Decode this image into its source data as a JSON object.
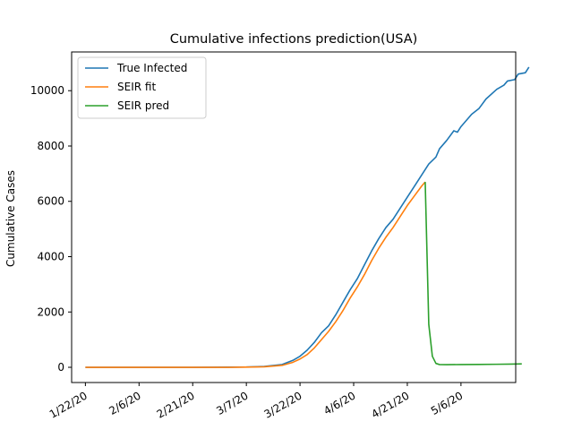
{
  "chart_data": {
    "type": "line",
    "title": "Cumulative infections prediction(USA)",
    "xlabel": "",
    "ylabel": "Cumulative Cases",
    "x_ticks": [
      "1/22/20",
      "2/6/20",
      "2/21/20",
      "3/7/20",
      "3/22/20",
      "4/6/20",
      "4/21/20",
      "5/6/20"
    ],
    "y_ticks": [
      0,
      2000,
      4000,
      6000,
      8000,
      10000
    ],
    "ylim": [
      -550,
      11400
    ],
    "legend_position": "top-left",
    "grid": false,
    "series": [
      {
        "name": "True Infected",
        "color": "#1f77b4",
        "points": [
          [
            "1/22/20",
            0
          ],
          [
            "2/1/20",
            0
          ],
          [
            "2/11/20",
            0
          ],
          [
            "2/21/20",
            0
          ],
          [
            "3/2/20",
            5
          ],
          [
            "3/7/20",
            10
          ],
          [
            "3/12/20",
            30
          ],
          [
            "3/17/20",
            100
          ],
          [
            "3/20/20",
            250
          ],
          [
            "3/22/20",
            400
          ],
          [
            "3/24/20",
            620
          ],
          [
            "3/26/20",
            900
          ],
          [
            "3/28/20",
            1250
          ],
          [
            "3/30/20",
            1500
          ],
          [
            "4/1/20",
            1900
          ],
          [
            "4/3/20",
            2350
          ],
          [
            "4/5/20",
            2800
          ],
          [
            "4/7/20",
            3200
          ],
          [
            "4/9/20",
            3700
          ],
          [
            "4/11/20",
            4200
          ],
          [
            "4/13/20",
            4650
          ],
          [
            "4/15/20",
            5050
          ],
          [
            "4/17/20",
            5350
          ],
          [
            "4/19/20",
            5750
          ],
          [
            "4/21/20",
            6150
          ],
          [
            "4/23/20",
            6550
          ],
          [
            "4/25/20",
            6950
          ],
          [
            "4/27/20",
            7350
          ],
          [
            "4/29/20",
            7600
          ],
          [
            "4/30/20",
            7900
          ],
          [
            "5/2/20",
            8200
          ],
          [
            "5/4/20",
            8550
          ],
          [
            "5/5/20",
            8500
          ],
          [
            "5/6/20",
            8700
          ],
          [
            "5/8/20",
            9000
          ],
          [
            "5/9/20",
            9150
          ],
          [
            "5/11/20",
            9350
          ],
          [
            "5/13/20",
            9700
          ],
          [
            "5/16/20",
            10050
          ],
          [
            "5/18/20",
            10200
          ],
          [
            "5/19/20",
            10350
          ],
          [
            "5/21/20",
            10400
          ],
          [
            "5/22/20",
            10600
          ],
          [
            "5/24/20",
            10650
          ],
          [
            "5/25/20",
            10850
          ]
        ]
      },
      {
        "name": "SEIR fit",
        "color": "#ff7f0e",
        "points": [
          [
            "1/22/20",
            0
          ],
          [
            "2/1/20",
            0
          ],
          [
            "2/11/20",
            0
          ],
          [
            "2/21/20",
            0
          ],
          [
            "3/2/20",
            0
          ],
          [
            "3/7/20",
            5
          ],
          [
            "3/12/20",
            20
          ],
          [
            "3/17/20",
            70
          ],
          [
            "3/20/20",
            180
          ],
          [
            "3/22/20",
            300
          ],
          [
            "3/24/20",
            460
          ],
          [
            "3/26/20",
            700
          ],
          [
            "3/28/20",
            1000
          ],
          [
            "3/30/20",
            1300
          ],
          [
            "4/1/20",
            1650
          ],
          [
            "4/3/20",
            2050
          ],
          [
            "4/5/20",
            2500
          ],
          [
            "4/7/20",
            2900
          ],
          [
            "4/9/20",
            3350
          ],
          [
            "4/11/20",
            3850
          ],
          [
            "4/13/20",
            4300
          ],
          [
            "4/15/20",
            4700
          ],
          [
            "4/17/20",
            5050
          ],
          [
            "4/19/20",
            5450
          ],
          [
            "4/21/20",
            5850
          ],
          [
            "4/23/20",
            6200
          ],
          [
            "4/25/20",
            6550
          ],
          [
            "4/26/20",
            6700
          ]
        ]
      },
      {
        "name": "SEIR pred",
        "color": "#2ca02c",
        "points": [
          [
            "4/26/20",
            6700
          ],
          [
            "4/27/20",
            1550
          ],
          [
            "4/28/20",
            400
          ],
          [
            "4/29/20",
            140
          ],
          [
            "4/30/20",
            100
          ],
          [
            "5/2/20",
            95
          ],
          [
            "5/6/20",
            100
          ],
          [
            "5/11/20",
            105
          ],
          [
            "5/16/20",
            110
          ],
          [
            "5/20/20",
            115
          ],
          [
            "5/23/20",
            125
          ]
        ]
      }
    ]
  }
}
